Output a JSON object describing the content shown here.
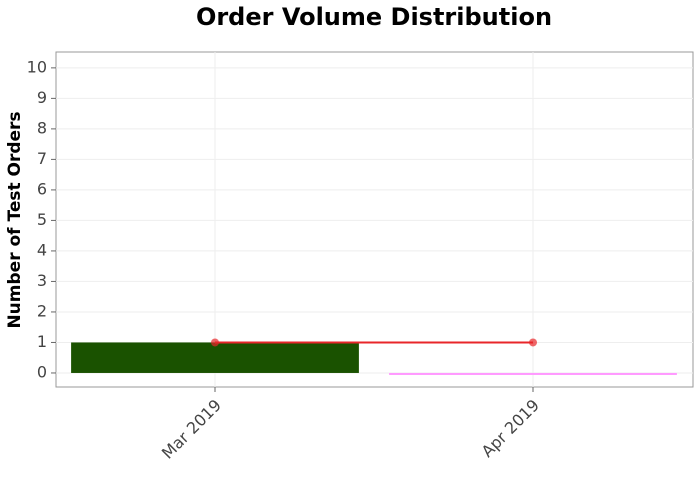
{
  "chart_data": {
    "type": "bar",
    "title": "Order Volume Distribution",
    "y_label": "Number of Test Orders",
    "categories": [
      "Mar 2019",
      "Apr 2019"
    ],
    "series": [
      {
        "type": "bar",
        "colors": [
          "#1a5200",
          "#ff99ff"
        ],
        "values": [
          1,
          0
        ]
      },
      {
        "type": "line",
        "color": "#e8262a",
        "values": [
          1,
          1
        ]
      }
    ],
    "ylim": [
      -0.46,
      10.52
    ],
    "yticks": [
      0,
      1,
      2,
      3,
      4,
      5,
      6,
      7,
      8,
      9,
      10
    ],
    "grid": true
  }
}
